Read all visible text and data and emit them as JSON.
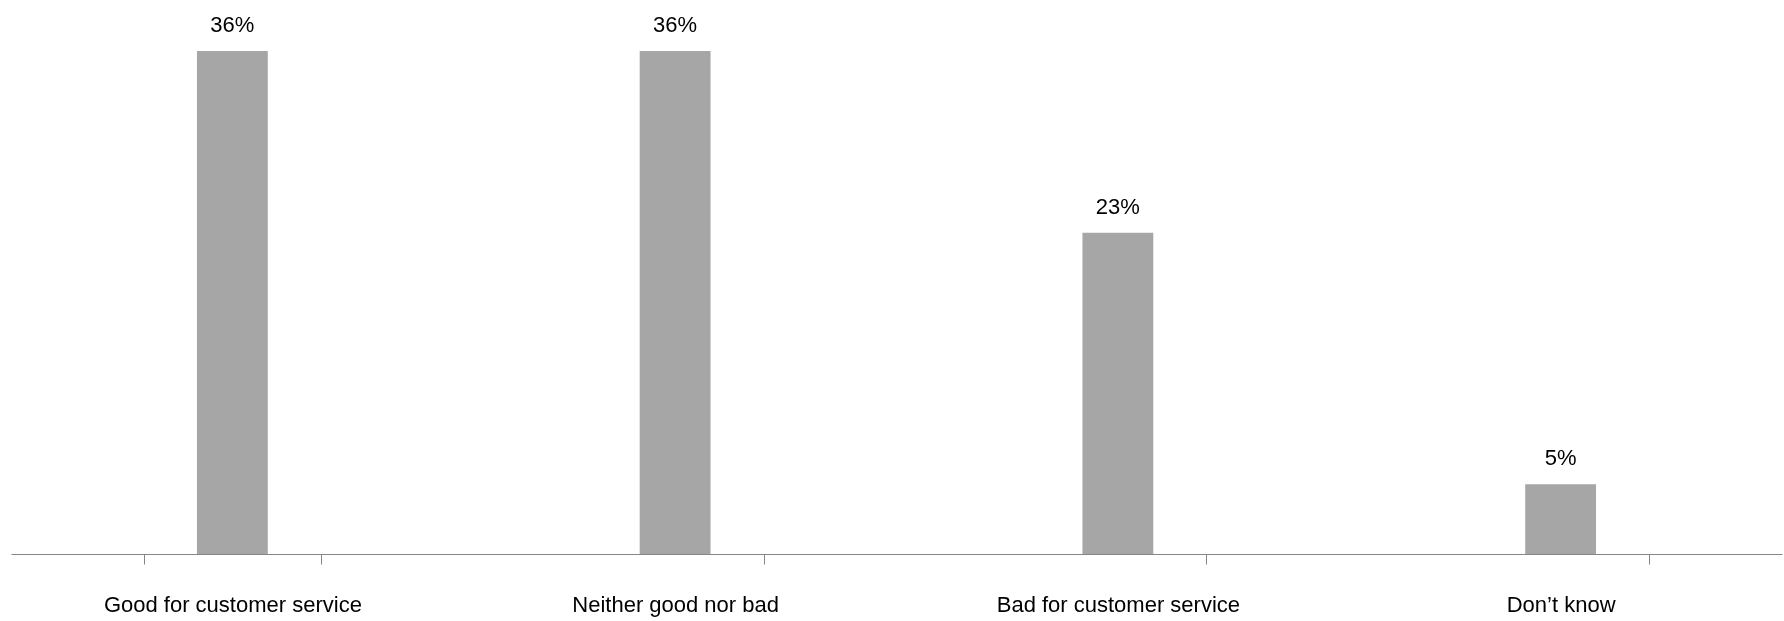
{
  "chart_data": {
    "type": "bar",
    "categories": [
      "Good for customer service",
      "Neither good nor bad",
      "Bad for customer service",
      "Don’t know"
    ],
    "values": [
      36,
      36,
      23,
      5
    ],
    "value_labels": [
      "36%",
      "36%",
      "23%",
      "5%"
    ],
    "color": "#a6a6a6"
  }
}
